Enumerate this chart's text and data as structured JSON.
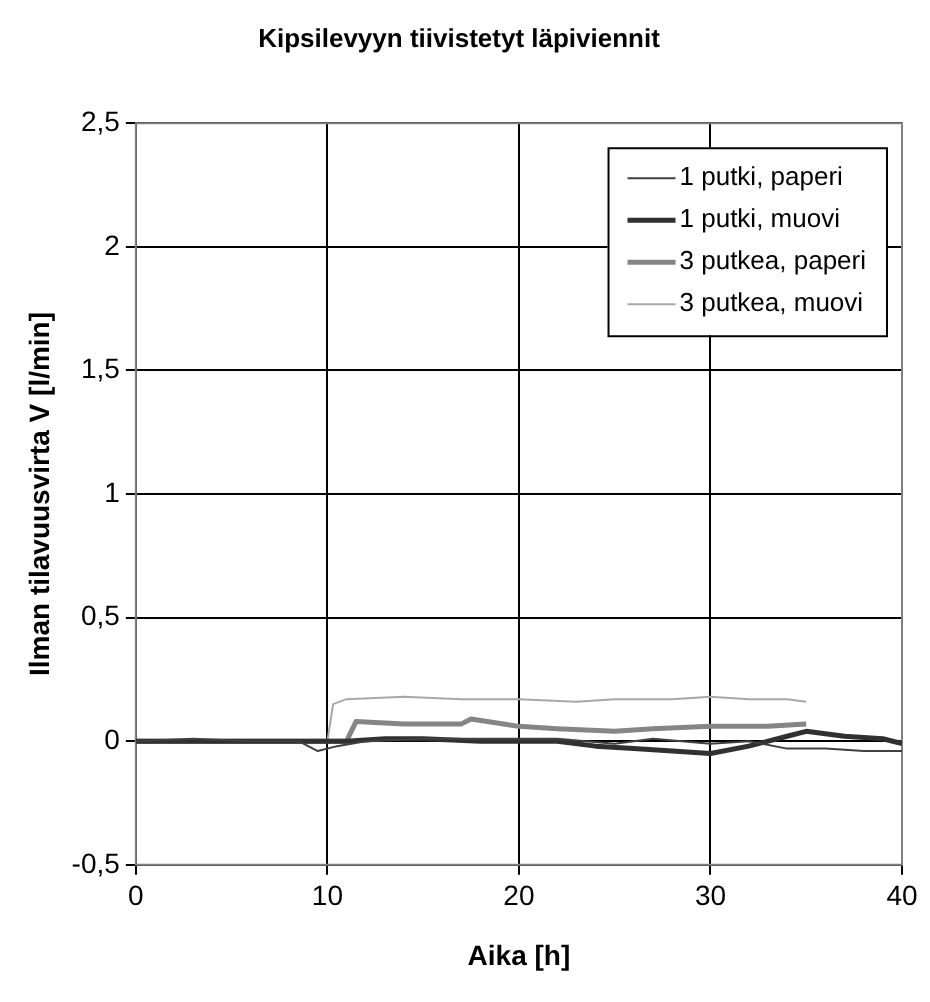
{
  "chart_data": {
    "type": "line",
    "title": "Kipsilevyyn tiivistetyt läpiviennit",
    "xlabel": "Aika [h]",
    "ylabel": "Ilman tilavuusvirta V [l/min]",
    "xlim": [
      0,
      40
    ],
    "xticks": [
      0,
      10,
      20,
      30,
      40
    ],
    "ylim": [
      -0.5,
      2.5
    ],
    "yticks": [
      {
        "value": -0.5,
        "label": "-0,5"
      },
      0,
      {
        "value": 0.5,
        "label": "0,5"
      },
      1,
      {
        "value": 1.5,
        "label": "1,5"
      },
      2,
      {
        "value": 2.5,
        "label": "2,5"
      }
    ],
    "grid": true,
    "legend": "top right",
    "marker": "none",
    "series": [
      {
        "name": "1 putki, paperi",
        "color": "#404040",
        "x": [
          0,
          3,
          6,
          8.5,
          9.5,
          10.5,
          12,
          15,
          18,
          20,
          22,
          25,
          27,
          30,
          32,
          34,
          36,
          38,
          40
        ],
        "values": [
          0,
          0.01,
          0,
          0,
          -0.04,
          -0.02,
          0,
          0.01,
          0.01,
          0.01,
          0.01,
          -0.01,
          0.01,
          -0.01,
          0,
          -0.03,
          -0.03,
          -0.04,
          -0.04
        ]
      },
      {
        "name": "1 putki, muovi",
        "color": "#303030",
        "x": [
          0,
          3,
          6,
          9,
          11,
          13,
          15,
          18,
          20,
          22,
          24,
          26,
          28,
          30,
          32,
          34,
          35,
          37,
          39,
          40
        ],
        "values": [
          0,
          0,
          0,
          0,
          0,
          0.01,
          0.01,
          0,
          0,
          0,
          -0.02,
          -0.03,
          -0.04,
          -0.05,
          -0.02,
          0.02,
          0.04,
          0.02,
          0.01,
          -0.01
        ]
      },
      {
        "name": "3 putkea, paperi",
        "color": "#858585",
        "x": [
          0,
          3,
          6,
          9,
          11,
          11.5,
          14,
          17,
          17.5,
          20,
          22,
          25,
          27,
          30,
          33,
          35
        ],
        "values": [
          0,
          0,
          0,
          0,
          0,
          0.08,
          0.07,
          0.07,
          0.09,
          0.06,
          0.05,
          0.04,
          0.05,
          0.06,
          0.06,
          0.07
        ]
      },
      {
        "name": "3 putkea, muovi",
        "color": "#a8a8a8",
        "x": [
          0,
          3,
          6,
          9,
          10,
          10.3,
          11,
          14,
          17,
          20,
          23,
          25,
          28,
          30,
          32,
          34,
          35
        ],
        "values": [
          0,
          0,
          0,
          0,
          0,
          0.15,
          0.17,
          0.18,
          0.17,
          0.17,
          0.16,
          0.17,
          0.17,
          0.18,
          0.17,
          0.17,
          0.16
        ]
      }
    ]
  }
}
